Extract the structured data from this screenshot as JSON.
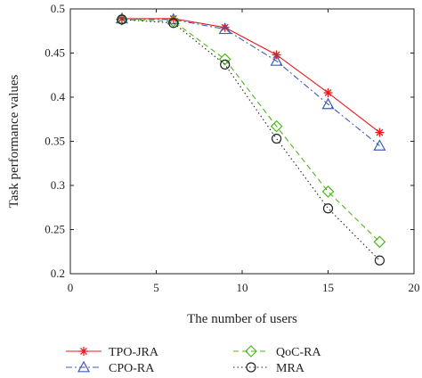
{
  "chart_data": {
    "type": "line",
    "xlabel": "The number of users",
    "ylabel": "Task performance values",
    "xlim": [
      0,
      20
    ],
    "ylim": [
      0.2,
      0.5
    ],
    "xticks": [
      0,
      5,
      10,
      15,
      20
    ],
    "yticks": [
      0.2,
      0.25,
      0.3,
      0.35,
      0.4,
      0.45,
      0.5
    ],
    "x_tick_labels": [
      "0",
      "5",
      "10",
      "15",
      "20"
    ],
    "y_tick_labels": [
      "0.2",
      "0.25",
      "0.3",
      "0.35",
      "0.4",
      "0.45",
      "0.5"
    ],
    "grid": false,
    "legend_position": "bottom",
    "x": [
      3,
      6,
      9,
      12,
      15,
      18
    ],
    "series": [
      {
        "name": "TPO-JRA",
        "values": [
          0.489,
          0.489,
          0.479,
          0.448,
          0.405,
          0.36
        ],
        "color": "#e8191b",
        "marker": "asterisk",
        "line_style": "solid"
      },
      {
        "name": "CPO-RA",
        "values": [
          0.489,
          0.488,
          0.477,
          0.441,
          0.392,
          0.345
        ],
        "color": "#3d5bbd",
        "marker": "triangle",
        "line_style": "dashdot"
      },
      {
        "name": "QoC-RA",
        "values": [
          0.488,
          0.486,
          0.443,
          0.367,
          0.293,
          0.236
        ],
        "color": "#4db81a",
        "marker": "diamond",
        "line_style": "dashed"
      },
      {
        "name": "MRA",
        "values": [
          0.488,
          0.484,
          0.437,
          0.353,
          0.274,
          0.215
        ],
        "color": "#222222",
        "marker": "circle",
        "line_style": "dotted"
      }
    ]
  }
}
